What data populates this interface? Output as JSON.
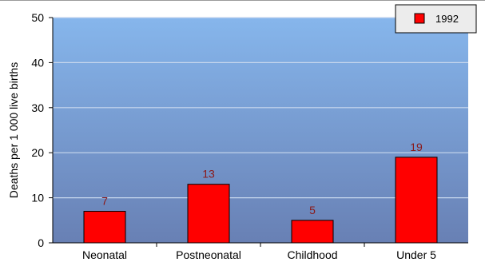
{
  "chart_data": {
    "type": "bar",
    "categories": [
      "Neonatal",
      "Postneonatal",
      "Childhood",
      "Under 5"
    ],
    "series": [
      {
        "name": "1992",
        "values": [
          7,
          13,
          5,
          19
        ],
        "color": "#ff0000"
      }
    ],
    "data_labels": [
      "7",
      "13",
      "5",
      "19"
    ],
    "ylabel": "Deaths per 1 000 live births",
    "xlabel": "",
    "ylim": [
      0,
      50
    ],
    "yticks": [
      0,
      10,
      20,
      30,
      40,
      50
    ],
    "grid": true,
    "legend_position": "top-right",
    "colors": {
      "bar": "#ff0000",
      "bar_edge": "#000000",
      "data_label": "#8b1a1a",
      "plot_bg_top": "#86b6ec",
      "plot_bg_bottom": "#6880b4",
      "grid": "#c8d8ee",
      "axis": "#000000"
    }
  }
}
